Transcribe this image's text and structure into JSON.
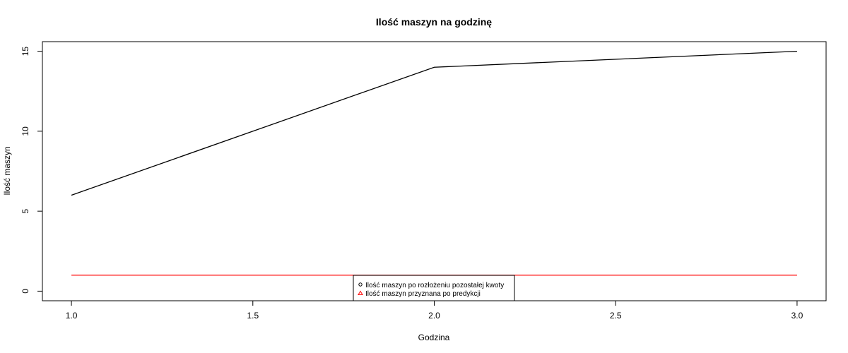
{
  "chart_data": {
    "type": "line",
    "title": "Ilość maszyn na godzinę",
    "xlabel": "Godzina",
    "ylabel": "Ilość maszyn",
    "xlim": [
      0.92,
      3.08
    ],
    "ylim": [
      -0.6,
      15.6
    ],
    "x_ticks": [
      1.0,
      1.5,
      2.0,
      2.5,
      3.0
    ],
    "x_tick_labels": [
      "1.0",
      "1.5",
      "2.0",
      "2.5",
      "3.0"
    ],
    "y_ticks": [
      0,
      5,
      10,
      15
    ],
    "y_tick_labels": [
      "0",
      "5",
      "10",
      "15"
    ],
    "grid": false,
    "legend_position": "bottom-center",
    "series": [
      {
        "name": "Ilość maszyn po rozłożeniu pozostałej kwoty",
        "color": "#000000",
        "marker": "circle",
        "x": [
          1,
          2,
          3
        ],
        "y": [
          6,
          14,
          15
        ]
      },
      {
        "name": "Ilość maszyn przyznana po predykcji",
        "color": "#ff0000",
        "marker": "triangle",
        "x": [
          1,
          2,
          3
        ],
        "y": [
          1,
          1,
          1
        ]
      }
    ]
  }
}
